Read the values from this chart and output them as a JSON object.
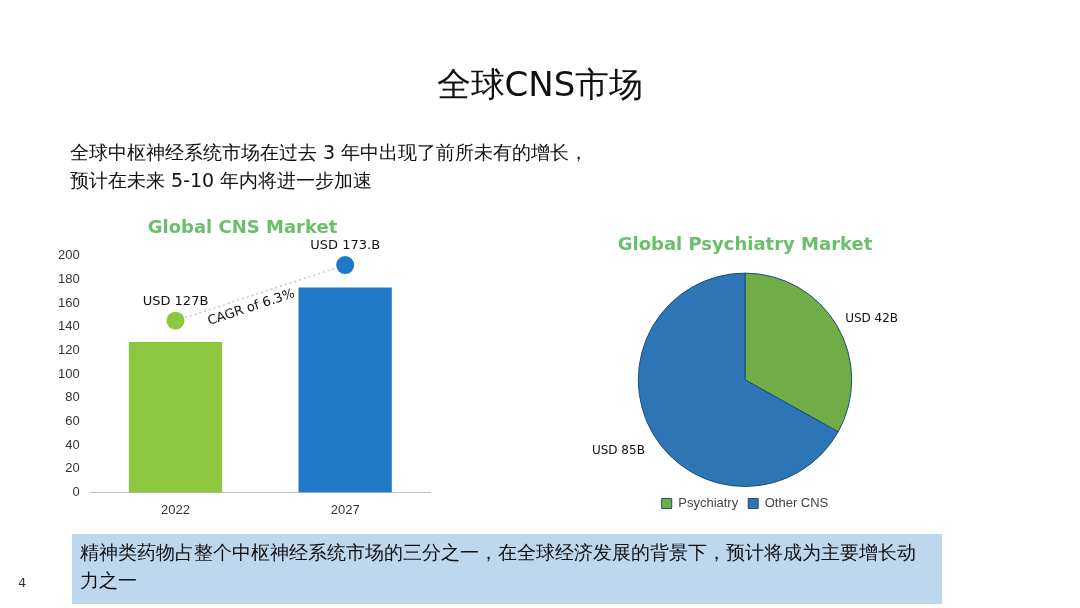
{
  "chart_data": [
    {
      "type": "other",
      "title": "全球CNS市场",
      "subtitle": "全球中枢神经系统市场在过去 3 年中出现了前所未有的增长，预计在未来 5-10 年内将进一步加速",
      "annotations": [
        "精神类药物占整个中枢神经系统市场的三分之一，在全球经济发展的背景下，预计将成为主要增长动力之一",
        "4"
      ]
    },
    {
      "type": "bar",
      "title": "Global CNS Market",
      "categories": [
        "2022",
        "2027"
      ],
      "ylim": [
        0,
        200
      ],
      "yticks": [
        0,
        20,
        40,
        60,
        80,
        100,
        120,
        140,
        160,
        180,
        200
      ],
      "grid": false,
      "legend": false,
      "annotations": [
        "CAGR of 6.3%"
      ],
      "series": [
        {
          "type": "line",
          "color": "#c8c8c8",
          "colors": [
            "#8dc63f",
            "#1f78c8"
          ],
          "values": [
            145,
            192
          ],
          "value_labels": [
            "USD 127B",
            "USD 173.B"
          ],
          "marker": "circle",
          "line_style": "dotted"
        },
        {
          "type": "bar",
          "colors": [
            "#8dc63f",
            "#1f78c8"
          ],
          "values": [
            127,
            173
          ]
        }
      ]
    },
    {
      "type": "pie",
      "title": "Global Psychiatry Market",
      "categories": [
        "Psychiatry",
        "Other CNS"
      ],
      "values": [
        33.1,
        66.9
      ],
      "colors": [
        "#70ad47",
        "#2e75b6"
      ],
      "value_labels": [
        "USD 42B",
        "USD 85B"
      ],
      "legend": "bottom"
    }
  ]
}
